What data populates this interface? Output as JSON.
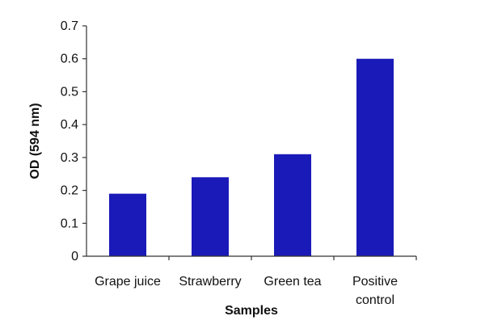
{
  "chart_data": {
    "type": "bar",
    "categories": [
      [
        "Grape juice"
      ],
      [
        "Strawberry"
      ],
      [
        "Green tea"
      ],
      [
        "Positive",
        "control"
      ]
    ],
    "values": [
      0.19,
      0.24,
      0.31,
      0.6
    ],
    "xlabel": "Samples",
    "ylabel": "OD (594 nm)",
    "ylim": [
      0,
      0.7
    ],
    "yticks": [
      "0",
      "0.1",
      "0.2",
      "0.3",
      "0.4",
      "0.5",
      "0.6",
      "0.7"
    ],
    "bar_color": "#1a1ab8",
    "grid": false,
    "legend": "none"
  }
}
